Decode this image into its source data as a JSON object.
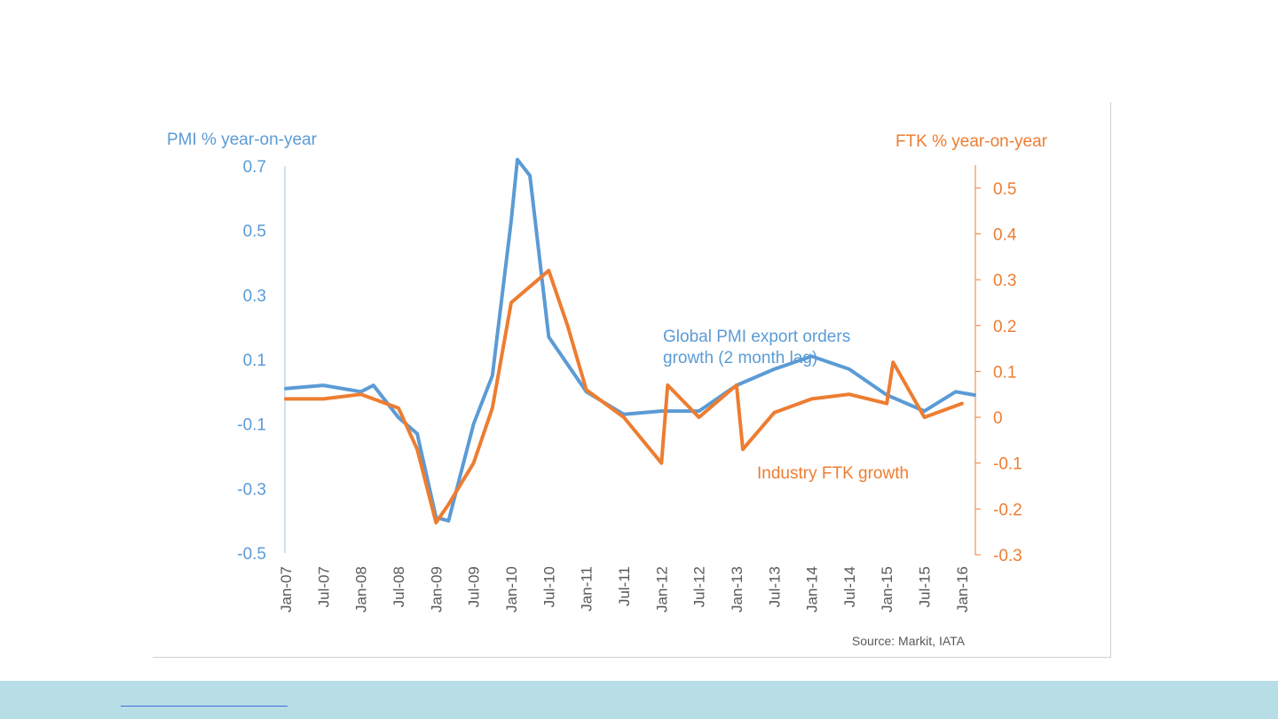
{
  "chart_data": {
    "type": "line",
    "title": "",
    "y_left_label": "PMI % year-on-year",
    "y_right_label": "FTK % year-on-year",
    "y_left_range": [
      -0.5,
      0.7
    ],
    "y_left_ticks": [
      "0.7",
      "0.5",
      "0.3",
      "0.1",
      "-0.1",
      "-0.3",
      "-0.5"
    ],
    "y_left_tick_values": [
      0.7,
      0.5,
      0.3,
      0.1,
      -0.1,
      -0.3,
      -0.5
    ],
    "y_right_range": [
      -0.3,
      0.55
    ],
    "y_right_ticks": [
      "0.5",
      "0.4",
      "0.3",
      "0.2",
      "0.1",
      "0",
      "-0.1",
      "-0.2",
      "-0.3"
    ],
    "y_right_tick_values": [
      0.5,
      0.4,
      0.3,
      0.2,
      0.1,
      0,
      -0.1,
      -0.2,
      -0.3
    ],
    "x_ticks": [
      "Jan-07",
      "Jul-07",
      "Jan-08",
      "Jul-08",
      "Jan-09",
      "Jul-09",
      "Jan-10",
      "Jul-10",
      "Jan-11",
      "Jul-11",
      "Jan-12",
      "Jul-12",
      "Jan-13",
      "Jul-13",
      "Jan-14",
      "Jul-14",
      "Jan-15",
      "Jul-15",
      "Jan-16"
    ],
    "grid": false,
    "legend": "inline annotations",
    "series": [
      {
        "name": "Global PMI export orders growth (2 month lag)",
        "axis": "left",
        "color": "#5b9bd5",
        "points": [
          [
            "Jan-07",
            0.01
          ],
          [
            "Jul-07",
            0.02
          ],
          [
            "Jan-08",
            0.0
          ],
          [
            "Mar-08",
            0.02
          ],
          [
            "Jul-08",
            -0.08
          ],
          [
            "Oct-08",
            -0.13
          ],
          [
            "Jan-09",
            -0.39
          ],
          [
            "Mar-09",
            -0.4
          ],
          [
            "Jul-09",
            -0.1
          ],
          [
            "Oct-09",
            0.05
          ],
          [
            "Jan-10",
            0.53
          ],
          [
            "Feb-10",
            0.72
          ],
          [
            "Apr-10",
            0.67
          ],
          [
            "Jul-10",
            0.17
          ],
          [
            "Jan-11",
            0.0
          ],
          [
            "Jul-11",
            -0.07
          ],
          [
            "Jan-12",
            -0.06
          ],
          [
            "Jul-12",
            -0.06
          ],
          [
            "Jan-13",
            0.02
          ],
          [
            "Jul-13",
            0.07
          ],
          [
            "Jan-14",
            0.11
          ],
          [
            "Jul-14",
            0.07
          ],
          [
            "Jan-15",
            -0.01
          ],
          [
            "Jul-15",
            -0.06
          ],
          [
            "Dec-15",
            0.0
          ],
          [
            "Mar-16",
            -0.01
          ]
        ]
      },
      {
        "name": "Industry FTK growth",
        "axis": "right",
        "color": "#ed7d31",
        "points": [
          [
            "Jan-07",
            0.04
          ],
          [
            "Jul-07",
            0.04
          ],
          [
            "Jan-08",
            0.05
          ],
          [
            "Jul-08",
            0.02
          ],
          [
            "Oct-08",
            -0.07
          ],
          [
            "Jan-09",
            -0.23
          ],
          [
            "Mar-09",
            -0.19
          ],
          [
            "Jul-09",
            -0.1
          ],
          [
            "Oct-09",
            0.02
          ],
          [
            "Jan-10",
            0.25
          ],
          [
            "Jul-10",
            0.32
          ],
          [
            "Oct-10",
            0.2
          ],
          [
            "Jan-11",
            0.06
          ],
          [
            "Jul-11",
            0.0
          ],
          [
            "Jan-12",
            -0.1
          ],
          [
            "Feb-12",
            0.07
          ],
          [
            "Jul-12",
            0.0
          ],
          [
            "Jan-13",
            0.07
          ],
          [
            "Feb-13",
            -0.07
          ],
          [
            "Jul-13",
            0.01
          ],
          [
            "Jan-14",
            0.04
          ],
          [
            "Jul-14",
            0.05
          ],
          [
            "Jan-15",
            0.03
          ],
          [
            "Feb-15",
            0.12
          ],
          [
            "Jul-15",
            0.0
          ],
          [
            "Jan-16",
            0.03
          ]
        ]
      }
    ],
    "annotations": [
      {
        "text_lines": [
          "Global PMI export orders",
          "growth (2 month lag)"
        ],
        "color": "#5b9bd5"
      },
      {
        "text_lines": [
          "Industry FTK growth"
        ],
        "color": "#ed7d31"
      }
    ],
    "source_note": "Source: Markit, IATA"
  },
  "colors": {
    "pmi": "#5b9bd5",
    "ftk": "#ed7d31",
    "footer_band": "#b7dde6"
  }
}
